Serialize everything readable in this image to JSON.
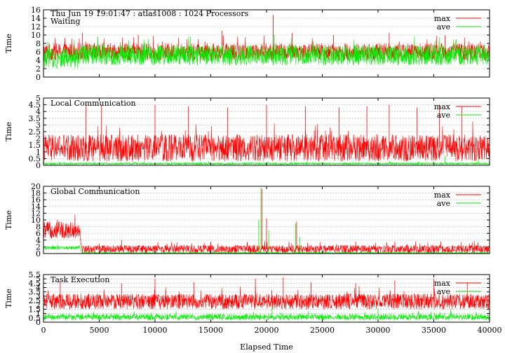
{
  "chart_data": [
    {
      "type": "line",
      "title": "Thu Jun 19 19:01:47 : atlas1008 : 1024 Processors",
      "annotation": "Waiting",
      "ylabel": "Time",
      "xlabel": "",
      "xlim": [
        0,
        40000
      ],
      "ylim": [
        0,
        16
      ],
      "yticks": [
        0,
        2,
        4,
        6,
        8,
        10,
        12,
        14,
        16
      ],
      "grid": true,
      "legend_position": "top-right",
      "series": [
        {
          "name": "max",
          "color": "#ff0000",
          "profile": [
            {
              "x": 0,
              "base": 6.0,
              "amp": 2.0
            },
            {
              "x": 40000,
              "base": 6.0,
              "amp": 2.0
            }
          ],
          "spikes": [
            [
              3500,
              10.5
            ],
            [
              8500,
              10.0
            ],
            [
              16000,
              11.0
            ],
            [
              20600,
              14.8
            ],
            [
              22300,
              10.5
            ],
            [
              26000,
              10.0
            ],
            [
              31000,
              10.5
            ],
            [
              36000,
              10.0
            ]
          ]
        },
        {
          "name": "ave",
          "color": "#00ee00",
          "profile": [
            {
              "x": 0,
              "base": 4.5,
              "amp": 2.4
            },
            {
              "x": 3300,
              "base": 4.5,
              "amp": 2.4
            },
            {
              "x": 3400,
              "base": 5.2,
              "amp": 2.4
            },
            {
              "x": 40000,
              "base": 5.2,
              "amp": 2.4
            }
          ],
          "spikes": [
            [
              20700,
              10.0
            ],
            [
              24200,
              8.5
            ],
            [
              37000,
              9.0
            ]
          ]
        }
      ]
    },
    {
      "type": "line",
      "title": "",
      "annotation": "Local Communication",
      "ylabel": "Time",
      "xlabel": "",
      "xlim": [
        0,
        40000
      ],
      "ylim": [
        0,
        5
      ],
      "yticks": [
        0,
        0.5,
        1,
        1.5,
        2,
        2.5,
        3,
        3.5,
        4,
        4.5,
        5
      ],
      "grid": true,
      "legend_position": "top-right",
      "series": [
        {
          "name": "max",
          "color": "#ff0000",
          "profile": [
            {
              "x": 0,
              "base": 1.3,
              "amp": 1.0
            },
            {
              "x": 40000,
              "base": 1.3,
              "amp": 1.0
            }
          ],
          "spikes": [
            [
              3800,
              4.4
            ],
            [
              5200,
              4.5
            ],
            [
              10000,
              4.5
            ],
            [
              13000,
              4.4
            ],
            [
              16500,
              4.3
            ],
            [
              20000,
              4.5
            ],
            [
              23500,
              4.4
            ],
            [
              26500,
              4.3
            ],
            [
              29000,
              4.4
            ],
            [
              31000,
              4.5
            ],
            [
              33500,
              4.3
            ],
            [
              35500,
              4.5
            ],
            [
              37500,
              4.4
            ]
          ]
        },
        {
          "name": "ave",
          "color": "#00ee00",
          "profile": [
            {
              "x": 0,
              "base": 0.12,
              "amp": 0.08
            },
            {
              "x": 40000,
              "base": 0.12,
              "amp": 0.08
            }
          ],
          "spikes": [
            [
              36000,
              0.7
            ],
            [
              39000,
              0.6
            ]
          ]
        }
      ]
    },
    {
      "type": "line",
      "title": "",
      "annotation": "Global Communication",
      "ylabel": "Time",
      "xlabel": "",
      "xlim": [
        0,
        40000
      ],
      "ylim": [
        0,
        20
      ],
      "yticks": [
        0,
        2,
        4,
        6,
        8,
        10,
        12,
        14,
        16,
        18,
        20
      ],
      "grid": true,
      "legend_position": "top-right",
      "series": [
        {
          "name": "max",
          "color": "#ff0000",
          "profile": [
            {
              "x": 0,
              "base": 7.0,
              "amp": 2.5
            },
            {
              "x": 3300,
              "base": 7.0,
              "amp": 2.5
            },
            {
              "x": 3400,
              "base": 1.3,
              "amp": 1.2
            },
            {
              "x": 40000,
              "base": 1.3,
              "amp": 1.2
            }
          ],
          "spikes": [
            [
              19600,
              19.3
            ],
            [
              20000,
              10.5
            ],
            [
              22700,
              9.5
            ],
            [
              7000,
              4.0
            ],
            [
              15000,
              3.5
            ],
            [
              28000,
              3.5
            ]
          ]
        },
        {
          "name": "ave",
          "color": "#00ee00",
          "profile": [
            {
              "x": 0,
              "base": 1.7,
              "amp": 0.5
            },
            {
              "x": 3300,
              "base": 1.7,
              "amp": 0.5
            },
            {
              "x": 3400,
              "base": 0.2,
              "amp": 0.2
            },
            {
              "x": 40000,
              "base": 0.2,
              "amp": 0.2
            }
          ],
          "spikes": [
            [
              19500,
              19.5
            ],
            [
              19300,
              10.0
            ],
            [
              20200,
              7.0
            ],
            [
              22600,
              9.0
            ],
            [
              23000,
              5.0
            ]
          ]
        }
      ]
    },
    {
      "type": "line",
      "title": "",
      "annotation": "Task Execution",
      "ylabel": "Time",
      "xlabel": "Elapsed Time",
      "xlim": [
        0,
        40000
      ],
      "ylim": [
        0,
        5.5
      ],
      "yticks": [
        0,
        0.5,
        1,
        1.5,
        2,
        2.5,
        3,
        3.5,
        4,
        4.5,
        5,
        5.5
      ],
      "xticks": [
        0,
        5000,
        10000,
        15000,
        20000,
        25000,
        30000,
        35000,
        40000
      ],
      "grid": true,
      "legend_position": "top-right",
      "series": [
        {
          "name": "max",
          "color": "#ff0000",
          "profile": [
            {
              "x": 0,
              "base": 2.4,
              "amp": 0.9
            },
            {
              "x": 40000,
              "base": 2.4,
              "amp": 0.9
            }
          ],
          "spikes": [
            [
              1500,
              4.8
            ],
            [
              7000,
              4.5
            ],
            [
              10000,
              5.0
            ],
            [
              13500,
              4.6
            ],
            [
              19000,
              5.0
            ],
            [
              21500,
              5.2
            ],
            [
              24000,
              4.6
            ],
            [
              28000,
              4.5
            ],
            [
              31500,
              4.8
            ],
            [
              35000,
              5.0
            ],
            [
              38000,
              4.6
            ]
          ]
        },
        {
          "name": "ave",
          "color": "#00ee00",
          "profile": [
            {
              "x": 0,
              "base": 0.6,
              "amp": 0.35
            },
            {
              "x": 40000,
              "base": 0.6,
              "amp": 0.35
            }
          ],
          "spikes": [
            [
              20500,
              1.8
            ],
            [
              30000,
              1.6
            ],
            [
              36500,
              1.5
            ]
          ]
        }
      ]
    }
  ]
}
